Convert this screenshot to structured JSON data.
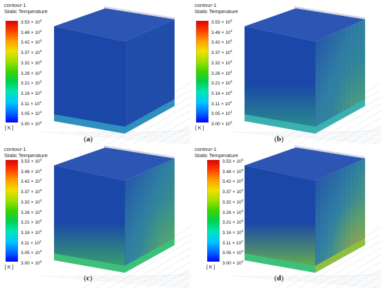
{
  "legend": {
    "line1": "contour-1",
    "line2": "Static Temperature",
    "unit": "[ K ]",
    "ticks": [
      {
        "m": "3.53",
        "e": "2"
      },
      {
        "m": "3.48",
        "e": "2"
      },
      {
        "m": "3.42",
        "e": "2"
      },
      {
        "m": "3.37",
        "e": "2"
      },
      {
        "m": "3.32",
        "e": "2"
      },
      {
        "m": "3.26",
        "e": "2"
      },
      {
        "m": "3.21",
        "e": "2"
      },
      {
        "m": "3.16",
        "e": "2"
      },
      {
        "m": "3.11",
        "e": "2"
      },
      {
        "m": "3.05",
        "e": "2"
      },
      {
        "m": "3.00",
        "e": "2"
      }
    ],
    "times": " × 10"
  },
  "panels": [
    {
      "id": "a",
      "caption_open": "(",
      "caption_letter": "a",
      "caption_close": ")"
    },
    {
      "id": "b",
      "caption_open": "(",
      "caption_letter": "b",
      "caption_close": ")"
    },
    {
      "id": "c",
      "caption_open": "(",
      "caption_letter": "c",
      "caption_close": ")"
    },
    {
      "id": "d",
      "caption_open": "(",
      "caption_letter": "d",
      "caption_close": ")"
    }
  ],
  "colors": {
    "colormap": [
      "#0000ff",
      "#0070ff",
      "#00c8ff",
      "#00e6b4",
      "#00d050",
      "#3ad400",
      "#a0e000",
      "#f0e000",
      "#ffa000",
      "#ff4000",
      "#e00000"
    ],
    "heatsink_cold": "#1a47a8",
    "heatsink_warm_b": "#2a8f8a",
    "heatsink_warm_c": "#3aa56a",
    "heatsink_warm_d": "#6ab44a"
  }
}
